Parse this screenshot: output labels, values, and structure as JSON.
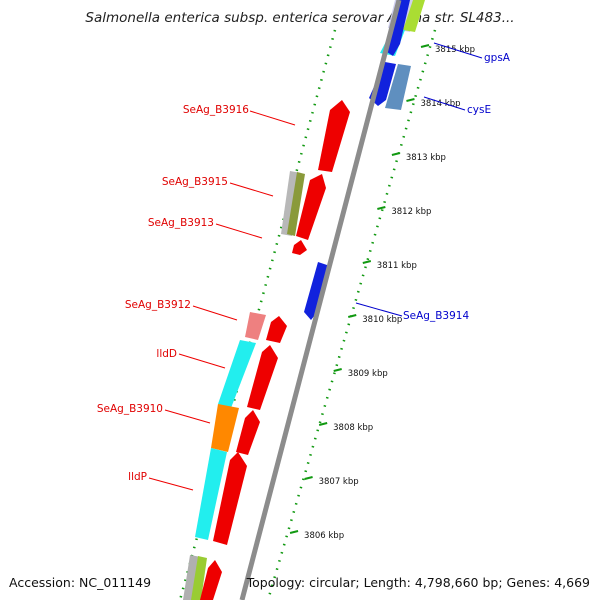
{
  "map": {
    "title": "Salmonella enterica subsp. enterica serovar Agona str. SL483...",
    "accession": "Accession: NC_011149",
    "summary": "Topology: circular; Length: 4,798,660 bp; Genes: 4,669"
  },
  "colors": {
    "forward_label": "#e00000",
    "reverse_label": "#0000cc",
    "backbone": "#888888",
    "kbp_ticks": "#119911"
  },
  "kbp_ticks": [
    "3815 kbp",
    "3814 kbp",
    "3813 kbp",
    "3812 kbp",
    "3811 kbp",
    "3810 kbp",
    "3809 kbp",
    "3808 kbp",
    "3807 kbp",
    "3806 kbp"
  ],
  "gene_labels": {
    "left": [
      "SeAg_B3916",
      "SeAg_B3915",
      "SeAg_B3913",
      "SeAg_B3912",
      "lldD",
      "SeAg_B3910",
      "lldP"
    ],
    "right": [
      "gpsA",
      "cysE",
      "SeAg_B3914"
    ]
  }
}
